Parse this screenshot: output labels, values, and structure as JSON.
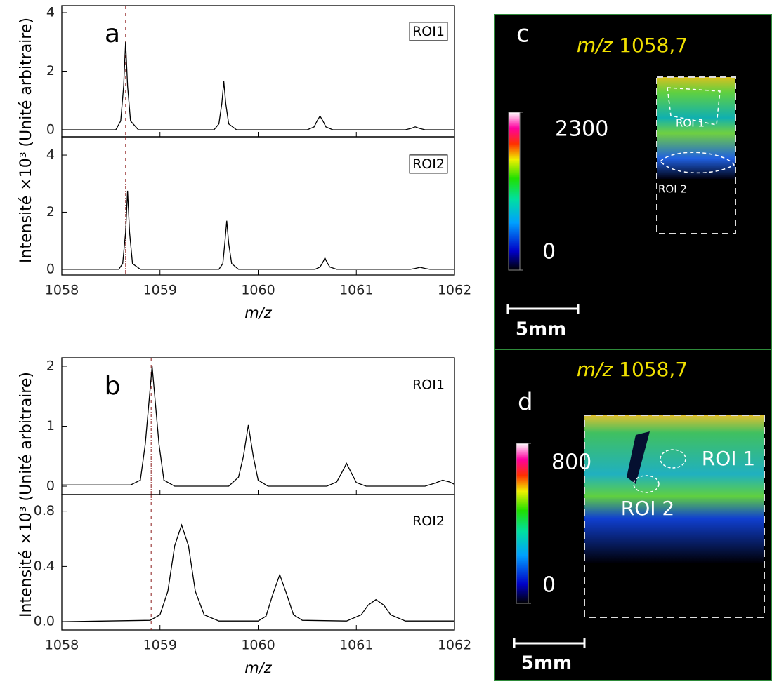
{
  "chart_data": [
    {
      "type": "line",
      "panel": "a",
      "ylabel": "Intensité ×10³ (Unité arbitraire)",
      "legend_box": true,
      "show_xtick_labels": false,
      "xlim": [
        1058,
        1062
      ],
      "xticks": [
        1058,
        1059,
        1060,
        1061,
        1062
      ],
      "ylim": [
        -0.24,
        4.24
      ],
      "yticks": [
        0,
        2,
        4
      ],
      "reference_line": 1058.65,
      "x": [
        1058,
        1058.55,
        1058.6,
        1058.63,
        1058.65,
        1058.67,
        1058.7,
        1058.78,
        1059.55,
        1059.6,
        1059.63,
        1059.65,
        1059.67,
        1059.7,
        1059.78,
        1060.5,
        1060.57,
        1060.6,
        1060.63,
        1060.66,
        1060.69,
        1060.76,
        1061.5,
        1061.56,
        1061.6,
        1061.64,
        1061.7,
        1062
      ],
      "series": [
        {
          "name": "ROI1",
          "color": "#000000",
          "values": [
            0,
            0,
            0.3,
            1.5,
            3.0,
            1.5,
            0.3,
            0,
            0,
            0.2,
            0.9,
            1.65,
            0.9,
            0.2,
            0,
            0,
            0.1,
            0.3,
            0.47,
            0.3,
            0.1,
            0,
            0,
            0.05,
            0.1,
            0.05,
            0,
            0
          ]
        }
      ]
    },
    {
      "type": "line",
      "xlabel": "m/z",
      "legend_box": true,
      "show_xtick_labels": true,
      "xlim": [
        1058,
        1062
      ],
      "xticks": [
        1058,
        1059,
        1060,
        1061,
        1062
      ],
      "ylim": [
        -0.2,
        4.64
      ],
      "yticks": [
        0,
        2,
        4
      ],
      "reference_line": 1058.65,
      "x": [
        1058,
        1058.58,
        1058.62,
        1058.65,
        1058.67,
        1058.69,
        1058.72,
        1058.8,
        1059.6,
        1059.64,
        1059.66,
        1059.68,
        1059.7,
        1059.73,
        1059.8,
        1060.58,
        1060.63,
        1060.66,
        1060.68,
        1060.7,
        1060.73,
        1060.8,
        1061.55,
        1061.6,
        1061.65,
        1061.7,
        1061.75,
        1062
      ],
      "series": [
        {
          "name": "ROI2",
          "color": "#000000",
          "values": [
            0,
            0,
            0.2,
            1.3,
            2.75,
            1.3,
            0.2,
            0,
            0,
            0.2,
            0.9,
            1.7,
            0.9,
            0.2,
            0,
            0,
            0.08,
            0.25,
            0.4,
            0.25,
            0.08,
            0,
            0,
            0.03,
            0.07,
            0.03,
            0,
            0
          ]
        }
      ]
    },
    {
      "type": "line",
      "panel": "b",
      "ylabel": "Intensité ×10³ (Unité arbitraire)",
      "legend_box": false,
      "show_xtick_labels": false,
      "xlim": [
        1058,
        1062
      ],
      "xticks": [
        1058,
        1059,
        1060,
        1061,
        1062
      ],
      "ylim": [
        -0.14,
        2.14
      ],
      "yticks": [
        0,
        1,
        2
      ],
      "reference_line": 1058.91,
      "x": [
        1058,
        1058.7,
        1058.8,
        1058.85,
        1058.92,
        1058.99,
        1059.04,
        1059.15,
        1059.7,
        1059.8,
        1059.85,
        1059.9,
        1059.95,
        1060.0,
        1060.1,
        1060.7,
        1060.8,
        1060.85,
        1060.9,
        1060.95,
        1061.0,
        1061.1,
        1061.7,
        1061.8,
        1061.88,
        1061.95,
        1062
      ],
      "series": [
        {
          "name": "ROI1",
          "color": "#000000",
          "values": [
            0.02,
            0.02,
            0.1,
            0.7,
            2.0,
            0.7,
            0.1,
            0,
            0,
            0.15,
            0.5,
            1.02,
            0.5,
            0.1,
            0,
            0,
            0.07,
            0.22,
            0.38,
            0.22,
            0.06,
            0,
            0,
            0.05,
            0.1,
            0.07,
            0.03
          ]
        }
      ]
    },
    {
      "type": "line",
      "xlabel": "m/z",
      "legend_box": false,
      "show_xtick_labels": true,
      "xlim": [
        1058,
        1062
      ],
      "xticks": [
        1058,
        1059,
        1060,
        1061,
        1062
      ],
      "ylim": [
        -0.06,
        0.92
      ],
      "yticks": [
        {
          "value": 0,
          "label": "0.0"
        },
        0.4,
        0.8
      ],
      "reference_line": 1058.91,
      "x": [
        1058,
        1058.9,
        1059.0,
        1059.08,
        1059.15,
        1059.22,
        1059.29,
        1059.36,
        1059.45,
        1059.6,
        1060.0,
        1060.08,
        1060.15,
        1060.22,
        1060.29,
        1060.36,
        1060.45,
        1060.9,
        1061.05,
        1061.12,
        1061.2,
        1061.28,
        1061.35,
        1061.5,
        1062
      ],
      "series": [
        {
          "name": "ROI2",
          "color": "#000000",
          "values": [
            0,
            0.01,
            0.05,
            0.22,
            0.55,
            0.7,
            0.55,
            0.22,
            0.05,
            0.005,
            0.005,
            0.04,
            0.2,
            0.34,
            0.2,
            0.05,
            0.01,
            0.005,
            0.05,
            0.12,
            0.16,
            0.12,
            0.05,
            0.005,
            0.005
          ]
        }
      ]
    }
  ],
  "images": [
    {
      "panel": "c",
      "title_italic": "m/z",
      "title_value": "1058,7",
      "colorbar_max": 2300,
      "colorbar_min": 0,
      "roi_labels": [
        "ROI 1",
        "ROI 2"
      ],
      "scale_bar": "5mm"
    },
    {
      "panel": "d",
      "title_italic": "m/z",
      "title_value": "1058,7",
      "colorbar_max": 800,
      "colorbar_min": 0,
      "roi_labels": [
        "ROI 1",
        "ROI 2"
      ],
      "scale_bar": "5mm"
    }
  ]
}
